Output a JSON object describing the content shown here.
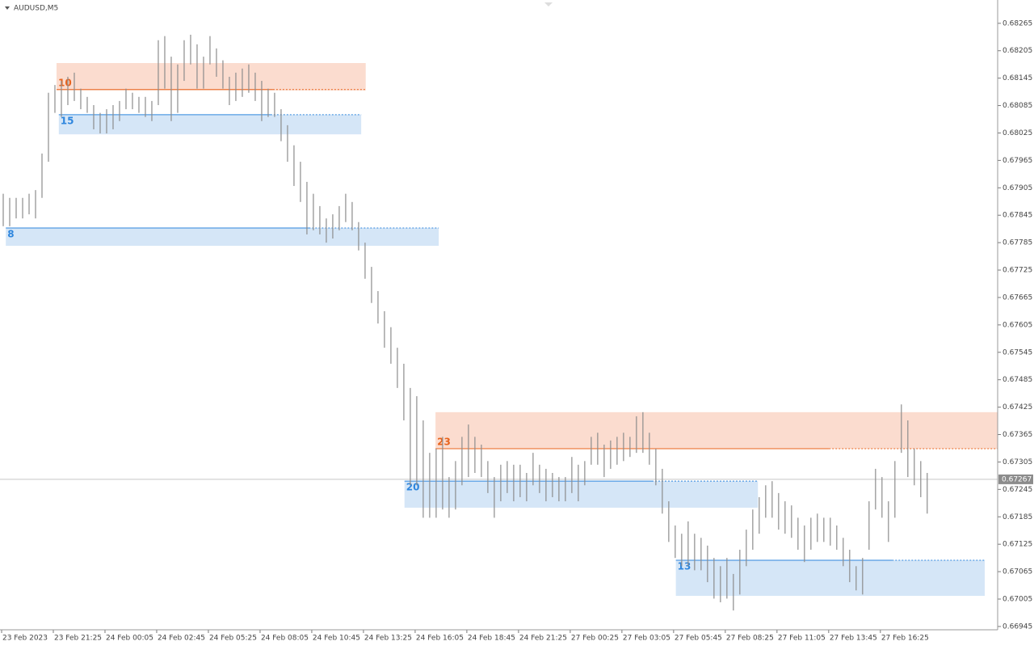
{
  "chart_data": {
    "type": "ohlc",
    "title": "AUDUSD,M5",
    "bar_color": "#8c8c8c",
    "ylim": [
      0.66936,
      0.68316
    ],
    "yticks": [
      0.68265,
      0.68205,
      0.68145,
      0.68085,
      0.68025,
      0.67965,
      0.67905,
      0.67845,
      0.67785,
      0.67725,
      0.67665,
      0.67605,
      0.67545,
      0.67485,
      0.67425,
      0.67365,
      0.67305,
      0.67245,
      0.67185,
      0.67125,
      0.67065,
      0.67005,
      0.66945
    ],
    "xlim": [
      -0.5,
      153.9
    ],
    "xticks": [
      {
        "value": 0,
        "label": "23 Feb 2023"
      },
      {
        "value": 8,
        "label": "23 Feb 21:25"
      },
      {
        "value": 16,
        "label": "24 Feb 00:05"
      },
      {
        "value": 24,
        "label": "24 Feb 02:45"
      },
      {
        "value": 32,
        "label": "24 Feb 05:25"
      },
      {
        "value": 40,
        "label": "24 Feb 08:05"
      },
      {
        "value": 48,
        "label": "24 Feb 10:45"
      },
      {
        "value": 56,
        "label": "24 Feb 13:25"
      },
      {
        "value": 64,
        "label": "24 Feb 16:05"
      },
      {
        "value": 72,
        "label": "24 Feb 18:45"
      },
      {
        "value": 80,
        "label": "24 Feb 21:25"
      },
      {
        "value": 88,
        "label": "27 Feb 00:25"
      },
      {
        "value": 96,
        "label": "27 Feb 03:05"
      },
      {
        "value": 104,
        "label": "27 Feb 05:45"
      },
      {
        "value": 112,
        "label": "27 Feb 08:25"
      },
      {
        "value": 120,
        "label": "27 Feb 11:05"
      },
      {
        "value": 128,
        "label": "27 Feb 13:45"
      },
      {
        "value": 136,
        "label": "27 Feb 16:25"
      }
    ],
    "high": [
      0.67892,
      0.67883,
      0.67883,
      0.67883,
      0.67892,
      0.679,
      0.6798,
      0.68113,
      0.6813,
      0.68139,
      0.68148,
      0.68157,
      0.68122,
      0.68104,
      0.68086,
      0.68069,
      0.68077,
      0.68086,
      0.68095,
      0.68122,
      0.68113,
      0.68104,
      0.68104,
      0.68095,
      0.68228,
      0.68237,
      0.68192,
      0.68175,
      0.68228,
      0.6824,
      0.68219,
      0.68192,
      0.68237,
      0.6821,
      0.68184,
      0.68148,
      0.68157,
      0.68166,
      0.68175,
      0.68157,
      0.68139,
      0.68122,
      0.68113,
      0.68077,
      0.68042,
      0.67998,
      0.67962,
      0.67918,
      0.67892,
      0.67865,
      0.67838,
      0.67847,
      0.67865,
      0.67892,
      0.67874,
      0.6783,
      0.67785,
      0.67732,
      0.67679,
      0.67635,
      0.676,
      0.67555,
      0.6752,
      0.67467,
      0.67449,
      0.67396,
      0.67325,
      0.67334,
      0.6736,
      0.67272,
      0.67307,
      0.6736,
      0.67387,
      0.6736,
      0.67343,
      0.67307,
      0.67272,
      0.67299,
      0.67307,
      0.67299,
      0.67299,
      0.67281,
      0.67325,
      0.67299,
      0.6729,
      0.67281,
      0.67272,
      0.67272,
      0.67316,
      0.67299,
      0.67307,
      0.6736,
      0.67369,
      0.67343,
      0.67352,
      0.6736,
      0.67369,
      0.6736,
      0.67405,
      0.67414,
      0.67369,
      0.67334,
      0.6729,
      0.67219,
      0.67166,
      0.67148,
      0.67175,
      0.67148,
      0.67139,
      0.67122,
      0.67095,
      0.67077,
      0.67095,
      0.6706,
      0.67113,
      0.67157,
      0.67201,
      0.67228,
      0.67254,
      0.67263,
      0.67237,
      0.67219,
      0.6721,
      0.67183,
      0.67166,
      0.67183,
      0.67192,
      0.67183,
      0.67183,
      0.67166,
      0.67139,
      0.67113,
      0.67077,
      0.67095,
      0.67219,
      0.6729,
      0.67272,
      0.67219,
      0.67307,
      0.67431,
      0.67396,
      0.67334,
      0.67307,
      0.67281
    ],
    "low": [
      0.67821,
      0.67821,
      0.67838,
      0.67838,
      0.67847,
      0.67838,
      0.67883,
      0.67962,
      0.68069,
      0.6806,
      0.68086,
      0.68095,
      0.68077,
      0.68069,
      0.68033,
      0.68024,
      0.68024,
      0.68033,
      0.68051,
      0.68077,
      0.68077,
      0.68069,
      0.6806,
      0.68051,
      0.68086,
      0.68122,
      0.68051,
      0.68069,
      0.68139,
      0.68175,
      0.68122,
      0.68122,
      0.68175,
      0.68148,
      0.68122,
      0.68086,
      0.68095,
      0.68104,
      0.68113,
      0.68095,
      0.68051,
      0.6806,
      0.6806,
      0.68007,
      0.67962,
      0.67909,
      0.67874,
      0.67803,
      0.67812,
      0.67803,
      0.67785,
      0.67794,
      0.67812,
      0.6783,
      0.67812,
      0.67768,
      0.67706,
      0.67653,
      0.67608,
      0.67555,
      0.6752,
      0.67467,
      0.67396,
      0.67254,
      0.67254,
      0.67183,
      0.67183,
      0.67183,
      0.67201,
      0.67183,
      0.67201,
      0.67254,
      0.67272,
      0.67281,
      0.67272,
      0.67237,
      0.67183,
      0.67219,
      0.67237,
      0.67219,
      0.67228,
      0.67219,
      0.67254,
      0.67237,
      0.67219,
      0.67228,
      0.67219,
      0.67219,
      0.67237,
      0.67219,
      0.67254,
      0.67299,
      0.67299,
      0.67272,
      0.6729,
      0.67299,
      0.67307,
      0.67316,
      0.67325,
      0.67325,
      0.67299,
      0.67254,
      0.67192,
      0.6713,
      0.67095,
      0.67077,
      0.67077,
      0.67068,
      0.67068,
      0.67042,
      0.67006,
      0.66998,
      0.67006,
      0.6698,
      0.67015,
      0.67077,
      0.67113,
      0.67148,
      0.67183,
      0.67183,
      0.67157,
      0.67148,
      0.67139,
      0.67113,
      0.67086,
      0.67113,
      0.6713,
      0.6713,
      0.67122,
      0.67113,
      0.67077,
      0.67042,
      0.67024,
      0.67015,
      0.67113,
      0.67201,
      0.67183,
      0.6713,
      0.67183,
      0.67325,
      0.67272,
      0.67254,
      0.67228,
      0.67192
    ],
    "last_price": 0.67267,
    "zones": [
      {
        "label": "10",
        "top": 0.68178,
        "bottom": 0.68118,
        "level": 0.6812,
        "x_start": 8.25,
        "x_end": 56.1,
        "color": "#e8641e",
        "fill": "#fbdccf"
      },
      {
        "label": "15",
        "top": 0.68065,
        "bottom": 0.68022,
        "level": 0.68065,
        "x_start": 8.6,
        "x_end": 55.4,
        "color": "#2e86de",
        "fill": "#d5e6f7"
      },
      {
        "label": "8",
        "top": 0.67817,
        "bottom": 0.67778,
        "level": 0.67817,
        "x_start": 0.4,
        "x_end": 67.4,
        "color": "#2e86de",
        "fill": "#d5e6f7"
      },
      {
        "label": "23",
        "top": 0.67414,
        "bottom": 0.67334,
        "level": 0.67334,
        "x_start": 66.9,
        "x_end": 153.9,
        "color": "#e8641e",
        "fill": "#fbdccf"
      },
      {
        "label": "20",
        "top": 0.67263,
        "bottom": 0.67205,
        "level": 0.67263,
        "x_start": 62.1,
        "x_end": 116.8,
        "color": "#2e86de",
        "fill": "#d5e6f7"
      },
      {
        "label": "13",
        "top": 0.6709,
        "bottom": 0.67012,
        "level": 0.6709,
        "x_start": 104.1,
        "x_end": 151.9,
        "color": "#2e86de",
        "fill": "#d5e6f7"
      }
    ]
  }
}
